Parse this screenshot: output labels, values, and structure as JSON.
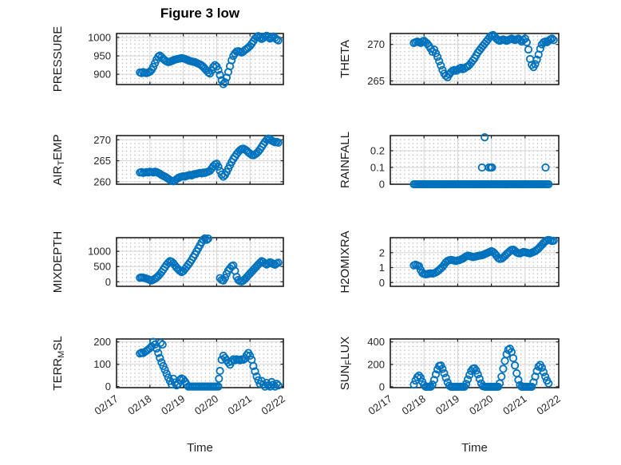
{
  "figure": {
    "title": "Figure 3 low",
    "xlabel": "Time",
    "x_tick_labels": [
      "02/17",
      "02/18",
      "02/19",
      "02/20",
      "02/21",
      "02/22"
    ],
    "xlim": [
      17,
      22
    ],
    "marker_color": "#0072BD",
    "axis_color": "#1f1f1f",
    "label_color": "#262626",
    "major_grid_color": "#d6d6d6",
    "minor_grid_color": "#b0b0b0",
    "background": "#ffffff"
  },
  "chart_data": [
    {
      "id": "pressure",
      "type": "scatter",
      "col": 0,
      "row": 0,
      "ylabel": "PRESSURE",
      "ylabel_parts": [
        {
          "text": "PRESSURE"
        }
      ],
      "yticks": [
        900,
        950,
        1000
      ],
      "ylim": [
        872,
        1011
      ],
      "segments": [
        {
          "x0": 17.7,
          "dx": 0.05,
          "y": [
            905,
            903,
            906,
            904,
            903,
            905,
            907,
            912,
            920,
            930,
            940,
            948,
            951,
            947,
            942,
            938,
            935,
            933,
            934,
            936,
            938,
            940,
            941,
            942,
            943,
            944,
            943,
            942,
            940,
            938,
            936,
            935,
            934,
            933,
            931,
            929,
            927,
            924,
            920,
            915,
            910,
            905,
            902,
            910,
            920,
            925,
            921,
            912,
            898,
            884,
            873,
            878,
            891,
            906,
            922,
            938,
            950,
            957,
            962,
            963,
            961,
            959,
            962,
            966,
            969,
            973,
            977,
            983,
            990,
            997,
            1001,
            1004,
            1000,
            996,
            999,
            1003,
            1005,
            1001,
            997,
            1000,
            1003,
            999,
            995,
            992
          ]
        }
      ]
    },
    {
      "id": "theta",
      "type": "scatter",
      "col": 1,
      "row": 0,
      "ylabel": "THETA",
      "ylabel_parts": [
        {
          "text": "THETA"
        }
      ],
      "yticks": [
        265,
        270
      ],
      "ylim": [
        264.5,
        271.5
      ],
      "segments": [
        {
          "x0": 17.7,
          "dx": 0.05,
          "y": [
            270.2,
            270.3,
            270.4,
            270.3,
            270.2,
            270.4,
            270.5,
            270.3,
            270.1,
            269.8,
            269.4,
            269.0,
            269.3,
            268.8,
            268.3,
            267.7,
            267.1,
            266.5,
            266.0,
            265.7,
            265.5,
            265.9,
            266.2,
            266.4,
            266.5,
            266.4,
            266.5,
            266.7,
            266.8,
            266.6,
            266.7,
            266.9,
            267.0,
            267.2,
            267.5,
            267.8,
            268.1,
            268.5,
            268.9,
            269.2,
            269.5,
            269.8,
            270.1,
            270.4,
            270.7,
            271.0,
            271.2,
            271.3,
            271.1,
            270.8,
            270.6,
            270.5,
            270.6,
            270.7,
            270.6,
            270.5,
            270.6,
            270.7,
            270.8,
            270.7,
            270.6,
            270.7,
            270.8,
            270.6,
            270.4,
            270.6,
            270.8,
            270.3,
            269.3,
            268.0,
            267.2,
            266.9,
            267.3,
            267.9,
            268.6,
            269.4,
            270.0,
            270.3,
            270.4,
            270.3,
            270.5,
            270.7,
            270.8,
            270.6
          ]
        }
      ]
    },
    {
      "id": "air-temp",
      "type": "scatter",
      "col": 0,
      "row": 1,
      "ylabel": "AIR_TEMP",
      "ylabel_parts": [
        {
          "text": "AIR"
        },
        {
          "text": "T",
          "sub": true
        },
        {
          "text": "EMP"
        }
      ],
      "yticks": [
        260,
        265,
        270
      ],
      "ylim": [
        259.4,
        271.0
      ],
      "segments": [
        {
          "x0": 17.7,
          "dx": 0.05,
          "y": [
            262.2,
            262.3,
            262.1,
            262.2,
            262.3,
            262.2,
            262.4,
            262.3,
            262.2,
            262.4,
            262.3,
            262.1,
            261.9,
            261.6,
            261.4,
            261.2,
            261.0,
            260.7,
            260.4,
            260.2,
            260.1,
            260.3,
            260.6,
            260.9,
            261.1,
            261.2,
            261.3,
            261.2,
            261.4,
            261.5,
            261.6,
            261.5,
            261.7,
            261.8,
            261.9,
            262.0,
            262.1,
            262.0,
            262.2,
            262.1,
            262.3,
            262.4,
            262.6,
            263.1,
            263.7,
            264.1,
            264.3,
            263.6,
            262.6,
            261.7,
            261.2,
            261.6,
            262.3,
            263.1,
            263.9,
            264.7,
            265.4,
            266.0,
            266.6,
            267.1,
            267.5,
            267.8,
            267.9,
            267.7,
            267.4,
            267.0,
            266.7,
            266.4,
            266.3,
            266.5,
            266.8,
            267.2,
            267.7,
            268.3,
            268.9,
            269.5,
            270.0,
            270.3,
            270.1,
            269.8,
            269.6,
            269.4,
            269.5,
            269.3
          ]
        }
      ]
    },
    {
      "id": "rainfall",
      "type": "scatter",
      "col": 1,
      "row": 1,
      "ylabel": "RAINFALL",
      "ylabel_parts": [
        {
          "text": "RAINFALL"
        }
      ],
      "yticks": [
        0,
        0.1,
        0.2
      ],
      "ylim": [
        0,
        0.29
      ],
      "zero_run": [
        17.7,
        21.7,
        0.05
      ],
      "extra": [
        [
          19.72,
          0.1
        ],
        [
          19.8,
          0.28
        ],
        [
          19.93,
          0.1
        ],
        [
          19.98,
          0.1
        ],
        [
          20.02,
          0.1
        ],
        [
          21.61,
          0.1
        ]
      ]
    },
    {
      "id": "mixdepth",
      "type": "scatter",
      "col": 0,
      "row": 2,
      "ylabel": "MIXDEPTH",
      "ylabel_parts": [
        {
          "text": "MIXDEPTH"
        }
      ],
      "yticks": [
        0,
        500,
        1000
      ],
      "ylim": [
        -150,
        1450
      ],
      "segments": [
        {
          "x0": 17.7,
          "dx": 0.05,
          "y": [
            130,
            140,
            135,
            120,
            105,
            80,
            60,
            45,
            70,
            100,
            140,
            190,
            250,
            320,
            400,
            480,
            560,
            630,
            680,
            660,
            610,
            540,
            470,
            410,
            360,
            320,
            350,
            420,
            490,
            560,
            640,
            720,
            810,
            900,
            1000,
            1100,
            1200,
            1300,
            1390,
            1430,
            1380,
            1420
          ]
        },
        {
          "x0": 20.1,
          "dx": 0.05,
          "y": [
            120,
            60,
            40,
            130,
            260,
            370,
            440,
            510,
            540,
            360,
            160,
            60,
            20,
            10,
            40,
            90,
            150,
            210,
            270,
            330,
            390,
            450,
            510,
            570,
            630,
            680,
            650,
            600,
            570,
            600,
            640,
            620,
            580,
            560,
            600,
            630
          ]
        }
      ]
    },
    {
      "id": "h2omixra",
      "type": "scatter",
      "col": 1,
      "row": 2,
      "ylabel": "H2OMIXRA",
      "ylabel_parts": [
        {
          "text": "H2OMIXRA"
        }
      ],
      "yticks": [
        0,
        1,
        2
      ],
      "ylim": [
        -0.25,
        3.0
      ],
      "segments": [
        {
          "x0": 17.7,
          "dx": 0.05,
          "y": [
            1.15,
            1.2,
            1.15,
            1.1,
            0.85,
            0.65,
            0.58,
            0.55,
            0.57,
            0.6,
            0.62,
            0.6,
            0.63,
            0.68,
            0.75,
            0.85,
            0.95,
            1.05,
            1.2,
            1.35,
            1.45,
            1.5,
            1.52,
            1.5,
            1.47,
            1.45,
            1.48,
            1.5,
            1.55,
            1.6,
            1.68,
            1.75,
            1.8,
            1.78,
            1.74,
            1.7,
            1.72,
            1.75,
            1.78,
            1.8,
            1.82,
            1.85,
            1.9,
            1.95,
            2.0,
            2.05,
            2.1,
            2.05,
            1.95,
            1.8,
            1.65,
            1.58,
            1.6,
            1.68,
            1.78,
            1.9,
            2.0,
            2.1,
            2.18,
            2.2,
            2.12,
            2.02,
            1.96,
            1.95,
            2.0,
            2.05,
            2.03,
            2.0,
            1.97,
            1.95,
            2.0,
            2.05,
            2.1,
            2.18,
            2.28,
            2.4,
            2.52,
            2.65,
            2.75,
            2.82,
            2.85,
            2.82,
            2.78,
            2.8
          ]
        }
      ]
    },
    {
      "id": "terr-msl",
      "type": "scatter",
      "col": 0,
      "row": 3,
      "ylabel": "TERR_MSL",
      "ylabel_parts": [
        {
          "text": "TERR"
        },
        {
          "text": "M",
          "sub": true
        },
        {
          "text": "SL"
        }
      ],
      "yticks": [
        0,
        100,
        200
      ],
      "ylim": [
        -5,
        213
      ],
      "segments": [
        {
          "x0": 17.7,
          "dx": 0.05,
          "y": [
            148,
            152,
            150,
            155,
            160,
            166,
            172,
            180,
            200,
            188,
            170,
            150,
            128,
            108,
            92,
            75,
            58,
            40,
            25,
            10,
            35,
            18,
            5,
            12,
            30,
            36,
            32,
            22,
            10,
            0,
            0,
            0,
            0,
            0,
            0,
            0,
            0,
            0,
            0,
            0,
            0,
            0,
            0,
            0,
            0,
            0,
            0,
            0,
            70,
            120,
            138,
            128,
            118,
            108,
            98,
            112,
            122,
            118,
            122,
            120,
            118,
            122,
            120,
            125,
            140,
            150,
            138,
            120,
            92,
            68,
            45,
            28,
            12,
            25,
            10,
            0,
            16,
            5,
            0,
            20,
            8,
            0,
            12,
            5
          ]
        }
      ],
      "extra": [
        [
          18.32,
          196
        ],
        [
          18.38,
          188
        ],
        [
          20.07,
          35
        ]
      ]
    },
    {
      "id": "sun-flux",
      "type": "scatter",
      "col": 1,
      "row": 3,
      "ylabel": "SUN_FLUX",
      "ylabel_parts": [
        {
          "text": "SUN"
        },
        {
          "text": "F",
          "sub": true
        },
        {
          "text": "LUX"
        }
      ],
      "yticks": [
        0,
        200,
        400
      ],
      "ylim": [
        -8,
        426
      ],
      "segments": [
        {
          "x0": 17.7,
          "dx": 0.05,
          "y": [
            20,
            55,
            85,
            100,
            80,
            45,
            15,
            0,
            0,
            0,
            0,
            20,
            60,
            110,
            155,
            185,
            190,
            160,
            120,
            80,
            40,
            10,
            0,
            0,
            0,
            0,
            0,
            0,
            0,
            0,
            0,
            25,
            65,
            105,
            140,
            160,
            165,
            145,
            110,
            70,
            30,
            5,
            0,
            0,
            0,
            0,
            0,
            0,
            0,
            0,
            0,
            30,
            90,
            160,
            230,
            290,
            330,
            340,
            310,
            255,
            190,
            120,
            60,
            15,
            0,
            0,
            0,
            0,
            0,
            0,
            0,
            40,
            90,
            140,
            180,
            195,
            170,
            130,
            90,
            55,
            30
          ]
        }
      ]
    }
  ]
}
